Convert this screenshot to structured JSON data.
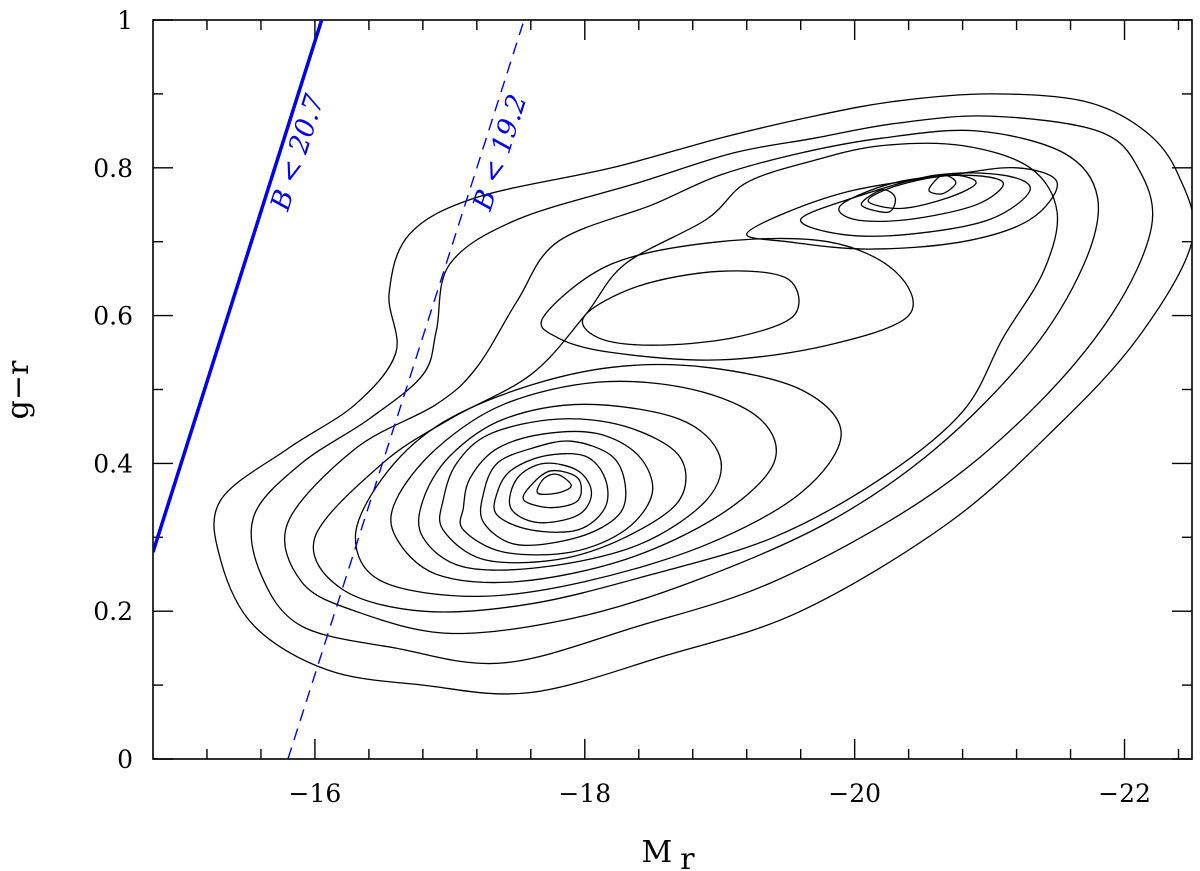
{
  "chart_data": {
    "type": "contour",
    "xlabel": "M",
    "xlabel_sub": "r",
    "ylabel": "g−r",
    "xlim": [
      -14.8,
      -22.5
    ],
    "ylim": [
      0,
      1
    ],
    "x_ticks_major": [
      -16,
      -18,
      -20,
      -22
    ],
    "x_tick_labels": [
      "−16",
      "−18",
      "−20",
      "−22"
    ],
    "x_ticks_minor_step": 0.4,
    "y_ticks_major": [
      0,
      0.2,
      0.4,
      0.6,
      0.8,
      1
    ],
    "y_tick_labels": [
      "0",
      "0.2",
      "0.4",
      "0.6",
      "0.8",
      "1"
    ],
    "y_ticks_minor_step": 0.1,
    "grid": false,
    "colors": {
      "contour": "#000000",
      "limit_lines": "#0000ee"
    },
    "limit_lines": [
      {
        "label": "B < 20.7",
        "style": "solid",
        "points": [
          [
            -14.8,
            0.28
          ],
          [
            -16.05,
            1.0
          ]
        ]
      },
      {
        "label": "B < 19.2",
        "style": "dashed",
        "points": [
          [
            -15.8,
            0.0
          ],
          [
            -17.55,
            1.0
          ]
        ]
      }
    ],
    "blue_peak": {
      "x": -17.8,
      "y": 0.385
    },
    "red_peak": {
      "x": -20.5,
      "y": 0.78
    },
    "contours": [
      {
        "level": 1,
        "points": [
          [
            -15.3,
            0.35
          ],
          [
            -15.3,
            0.27
          ],
          [
            -15.55,
            0.18
          ],
          [
            -16.1,
            0.12
          ],
          [
            -16.8,
            0.1
          ],
          [
            -17.6,
            0.09
          ],
          [
            -18.6,
            0.14
          ],
          [
            -19.6,
            0.2
          ],
          [
            -20.7,
            0.32
          ],
          [
            -21.5,
            0.45
          ],
          [
            -22.1,
            0.57
          ],
          [
            -22.5,
            0.7
          ],
          [
            -22.4,
            0.79
          ],
          [
            -22.15,
            0.85
          ],
          [
            -21.7,
            0.89
          ],
          [
            -21.0,
            0.9
          ],
          [
            -20.3,
            0.89
          ],
          [
            -19.7,
            0.87
          ],
          [
            -19.0,
            0.84
          ],
          [
            -18.2,
            0.8
          ],
          [
            -17.2,
            0.76
          ],
          [
            -16.7,
            0.71
          ],
          [
            -16.55,
            0.63
          ],
          [
            -16.6,
            0.55
          ],
          [
            -16.3,
            0.48
          ],
          [
            -15.8,
            0.42
          ],
          [
            -15.3,
            0.35
          ]
        ]
      },
      {
        "level": 2,
        "points": [
          [
            -15.55,
            0.33
          ],
          [
            -15.6,
            0.25
          ],
          [
            -15.9,
            0.18
          ],
          [
            -16.6,
            0.15
          ],
          [
            -17.4,
            0.13
          ],
          [
            -18.4,
            0.18
          ],
          [
            -19.4,
            0.24
          ],
          [
            -20.5,
            0.35
          ],
          [
            -21.3,
            0.47
          ],
          [
            -21.9,
            0.6
          ],
          [
            -22.2,
            0.72
          ],
          [
            -22.1,
            0.8
          ],
          [
            -21.8,
            0.85
          ],
          [
            -21.0,
            0.87
          ],
          [
            -20.3,
            0.86
          ],
          [
            -19.7,
            0.84
          ],
          [
            -19.1,
            0.82
          ],
          [
            -18.4,
            0.78
          ],
          [
            -17.5,
            0.73
          ],
          [
            -17.0,
            0.67
          ],
          [
            -16.9,
            0.58
          ],
          [
            -16.8,
            0.52
          ],
          [
            -16.4,
            0.46
          ],
          [
            -15.9,
            0.4
          ],
          [
            -15.55,
            0.33
          ]
        ]
      },
      {
        "level": 3,
        "points": [
          [
            -15.8,
            0.32
          ],
          [
            -15.9,
            0.24
          ],
          [
            -16.3,
            0.2
          ],
          [
            -17.0,
            0.17
          ],
          [
            -17.9,
            0.19
          ],
          [
            -18.8,
            0.24
          ],
          [
            -19.8,
            0.32
          ],
          [
            -20.6,
            0.42
          ],
          [
            -21.3,
            0.55
          ],
          [
            -21.7,
            0.67
          ],
          [
            -21.8,
            0.76
          ],
          [
            -21.55,
            0.82
          ],
          [
            -20.9,
            0.85
          ],
          [
            -20.2,
            0.84
          ],
          [
            -19.6,
            0.82
          ],
          [
            -19.0,
            0.79
          ],
          [
            -18.5,
            0.75
          ],
          [
            -17.8,
            0.7
          ],
          [
            -17.5,
            0.62
          ],
          [
            -17.2,
            0.53
          ],
          [
            -16.9,
            0.48
          ],
          [
            -16.3,
            0.42
          ],
          [
            -15.8,
            0.32
          ]
        ]
      },
      {
        "level": 4,
        "points": [
          [
            -16.0,
            0.3
          ],
          [
            -16.2,
            0.23
          ],
          [
            -16.8,
            0.2
          ],
          [
            -17.6,
            0.21
          ],
          [
            -18.5,
            0.25
          ],
          [
            -19.4,
            0.3
          ],
          [
            -20.2,
            0.38
          ],
          [
            -20.8,
            0.47
          ],
          [
            -21.1,
            0.57
          ],
          [
            -21.4,
            0.66
          ],
          [
            -21.5,
            0.74
          ],
          [
            -21.3,
            0.8
          ],
          [
            -20.8,
            0.83
          ],
          [
            -20.2,
            0.83
          ],
          [
            -19.7,
            0.81
          ],
          [
            -19.2,
            0.78
          ],
          [
            -18.9,
            0.73
          ],
          [
            -18.3,
            0.67
          ],
          [
            -18.0,
            0.6
          ],
          [
            -17.6,
            0.52
          ],
          [
            -17.0,
            0.46
          ],
          [
            -16.5,
            0.4
          ],
          [
            -16.0,
            0.3
          ]
        ]
      },
      {
        "level": 5,
        "points": [
          [
            -16.3,
            0.3
          ],
          [
            -16.5,
            0.24
          ],
          [
            -17.2,
            0.22
          ],
          [
            -18.0,
            0.24
          ],
          [
            -18.9,
            0.29
          ],
          [
            -19.6,
            0.36
          ],
          [
            -19.9,
            0.44
          ],
          [
            -19.6,
            0.5
          ],
          [
            -18.9,
            0.53
          ],
          [
            -18.2,
            0.53
          ],
          [
            -17.5,
            0.5
          ],
          [
            -16.9,
            0.45
          ],
          [
            -16.5,
            0.38
          ],
          [
            -16.3,
            0.3
          ]
        ]
      },
      {
        "level": 6,
        "points": [
          [
            -16.6,
            0.3
          ],
          [
            -16.9,
            0.25
          ],
          [
            -17.5,
            0.24
          ],
          [
            -18.3,
            0.27
          ],
          [
            -19.0,
            0.33
          ],
          [
            -19.4,
            0.4
          ],
          [
            -19.3,
            0.46
          ],
          [
            -18.8,
            0.5
          ],
          [
            -18.1,
            0.51
          ],
          [
            -17.4,
            0.48
          ],
          [
            -16.9,
            0.42
          ],
          [
            -16.6,
            0.35
          ],
          [
            -16.6,
            0.3
          ]
        ]
      },
      {
        "level": 7,
        "points": [
          [
            -16.8,
            0.3
          ],
          [
            -17.1,
            0.26
          ],
          [
            -17.7,
            0.26
          ],
          [
            -18.4,
            0.29
          ],
          [
            -18.9,
            0.35
          ],
          [
            -19.0,
            0.41
          ],
          [
            -18.7,
            0.46
          ],
          [
            -18.0,
            0.48
          ],
          [
            -17.4,
            0.46
          ],
          [
            -17.0,
            0.41
          ],
          [
            -16.8,
            0.35
          ],
          [
            -16.8,
            0.3
          ]
        ]
      },
      {
        "level": 8,
        "points": [
          [
            -16.95,
            0.31
          ],
          [
            -17.25,
            0.27
          ],
          [
            -17.8,
            0.27
          ],
          [
            -18.3,
            0.3
          ],
          [
            -18.7,
            0.35
          ],
          [
            -18.7,
            0.41
          ],
          [
            -18.3,
            0.45
          ],
          [
            -17.8,
            0.46
          ],
          [
            -17.3,
            0.44
          ],
          [
            -17.05,
            0.4
          ],
          [
            -16.95,
            0.35
          ],
          [
            -16.95,
            0.31
          ]
        ]
      },
      {
        "level": 9,
        "points": [
          [
            -17.1,
            0.31
          ],
          [
            -17.4,
            0.28
          ],
          [
            -17.9,
            0.28
          ],
          [
            -18.3,
            0.31
          ],
          [
            -18.5,
            0.36
          ],
          [
            -18.4,
            0.41
          ],
          [
            -18.1,
            0.44
          ],
          [
            -17.7,
            0.44
          ],
          [
            -17.35,
            0.42
          ],
          [
            -17.15,
            0.38
          ],
          [
            -17.1,
            0.34
          ],
          [
            -17.1,
            0.31
          ]
        ]
      },
      {
        "level": 10,
        "points": [
          [
            -17.25,
            0.32
          ],
          [
            -17.5,
            0.29
          ],
          [
            -17.95,
            0.3
          ],
          [
            -18.25,
            0.33
          ],
          [
            -18.3,
            0.37
          ],
          [
            -18.2,
            0.41
          ],
          [
            -17.9,
            0.43
          ],
          [
            -17.6,
            0.42
          ],
          [
            -17.35,
            0.4
          ],
          [
            -17.25,
            0.36
          ],
          [
            -17.25,
            0.32
          ]
        ]
      },
      {
        "level": 11,
        "points": [
          [
            -17.35,
            0.33
          ],
          [
            -17.6,
            0.31
          ],
          [
            -17.95,
            0.31
          ],
          [
            -18.15,
            0.34
          ],
          [
            -18.15,
            0.38
          ],
          [
            -18.0,
            0.41
          ],
          [
            -17.7,
            0.41
          ],
          [
            -17.45,
            0.39
          ],
          [
            -17.35,
            0.36
          ],
          [
            -17.35,
            0.33
          ]
        ]
      },
      {
        "level": 12,
        "points": [
          [
            -17.45,
            0.34
          ],
          [
            -17.65,
            0.32
          ],
          [
            -17.95,
            0.33
          ],
          [
            -18.05,
            0.36
          ],
          [
            -17.95,
            0.39
          ],
          [
            -17.7,
            0.4
          ],
          [
            -17.5,
            0.38
          ],
          [
            -17.45,
            0.34
          ]
        ]
      },
      {
        "level": 13,
        "points": [
          [
            -17.55,
            0.35
          ],
          [
            -17.75,
            0.34
          ],
          [
            -17.95,
            0.35
          ],
          [
            -17.95,
            0.38
          ],
          [
            -17.75,
            0.39
          ],
          [
            -17.6,
            0.37
          ],
          [
            -17.55,
            0.35
          ]
        ]
      },
      {
        "level": 14,
        "points": [
          [
            -17.65,
            0.36
          ],
          [
            -17.8,
            0.36
          ],
          [
            -17.9,
            0.37
          ],
          [
            -17.8,
            0.385
          ],
          [
            -17.7,
            0.38
          ],
          [
            -17.65,
            0.36
          ]
        ]
      },
      {
        "level": 15,
        "points": [
          [
            -18.0,
            0.6
          ],
          [
            -18.4,
            0.64
          ],
          [
            -19.0,
            0.66
          ],
          [
            -19.5,
            0.65
          ],
          [
            -19.55,
            0.6
          ],
          [
            -19.1,
            0.57
          ],
          [
            -18.5,
            0.56
          ],
          [
            -18.1,
            0.57
          ],
          [
            -18.0,
            0.6
          ]
        ]
      },
      {
        "level": 16,
        "points": [
          [
            -17.7,
            0.6
          ],
          [
            -18.2,
            0.67
          ],
          [
            -19.0,
            0.7
          ],
          [
            -19.8,
            0.7
          ],
          [
            -20.3,
            0.66
          ],
          [
            -20.4,
            0.6
          ],
          [
            -19.8,
            0.56
          ],
          [
            -19.0,
            0.54
          ],
          [
            -18.2,
            0.55
          ],
          [
            -17.8,
            0.57
          ],
          [
            -17.7,
            0.6
          ]
        ]
      },
      {
        "level": 17,
        "points": [
          [
            -19.2,
            0.71
          ],
          [
            -19.5,
            0.74
          ],
          [
            -20.0,
            0.77
          ],
          [
            -20.7,
            0.79
          ],
          [
            -21.2,
            0.8
          ],
          [
            -21.5,
            0.78
          ],
          [
            -21.3,
            0.73
          ],
          [
            -20.8,
            0.7
          ],
          [
            -20.1,
            0.69
          ],
          [
            -19.5,
            0.7
          ],
          [
            -19.2,
            0.71
          ]
        ]
      },
      {
        "level": 18,
        "points": [
          [
            -19.6,
            0.73
          ],
          [
            -20.0,
            0.76
          ],
          [
            -20.6,
            0.79
          ],
          [
            -21.1,
            0.79
          ],
          [
            -21.3,
            0.77
          ],
          [
            -21.0,
            0.73
          ],
          [
            -20.4,
            0.71
          ],
          [
            -19.9,
            0.71
          ],
          [
            -19.6,
            0.73
          ]
        ]
      },
      {
        "level": 19,
        "points": [
          [
            -19.9,
            0.75
          ],
          [
            -20.3,
            0.78
          ],
          [
            -20.8,
            0.79
          ],
          [
            -21.1,
            0.78
          ],
          [
            -20.9,
            0.75
          ],
          [
            -20.4,
            0.73
          ],
          [
            -20.0,
            0.73
          ],
          [
            -19.9,
            0.75
          ]
        ]
      },
      {
        "level": 20,
        "points": [
          [
            -20.1,
            0.755
          ],
          [
            -20.3,
            0.775
          ],
          [
            -20.7,
            0.79
          ],
          [
            -20.9,
            0.78
          ],
          [
            -20.7,
            0.76
          ],
          [
            -20.35,
            0.745
          ],
          [
            -20.1,
            0.755
          ]
        ]
      },
      {
        "level": 21,
        "points": [
          [
            -20.05,
            0.75
          ],
          [
            -20.2,
            0.77
          ],
          [
            -20.3,
            0.76
          ],
          [
            -20.25,
            0.74
          ],
          [
            -20.05,
            0.75
          ]
        ]
      },
      {
        "level": 22,
        "points": [
          [
            -20.55,
            0.77
          ],
          [
            -20.65,
            0.79
          ],
          [
            -20.75,
            0.78
          ],
          [
            -20.65,
            0.765
          ],
          [
            -20.55,
            0.77
          ]
        ]
      }
    ]
  }
}
